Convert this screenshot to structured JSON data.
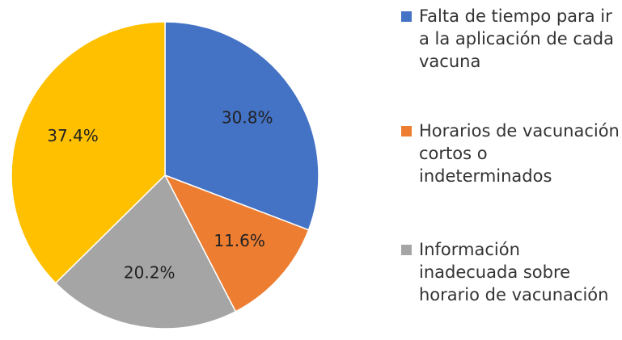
{
  "chart_data": {
    "type": "pie",
    "categories": [
      "Falta de tiempo para ir a la aplicación de cada vacuna",
      "Horarios de vacunación cortos o indeterminados",
      "Información inadecuada sobre horario de vacunación",
      null
    ],
    "values": [
      30.8,
      11.6,
      20.2,
      37.4
    ],
    "value_labels": [
      "30.8%",
      "11.6%",
      "20.2%",
      "37.4%"
    ],
    "colors": [
      "#4472c4",
      "#ed7d31",
      "#a5a5a5",
      "#ffc000"
    ]
  }
}
